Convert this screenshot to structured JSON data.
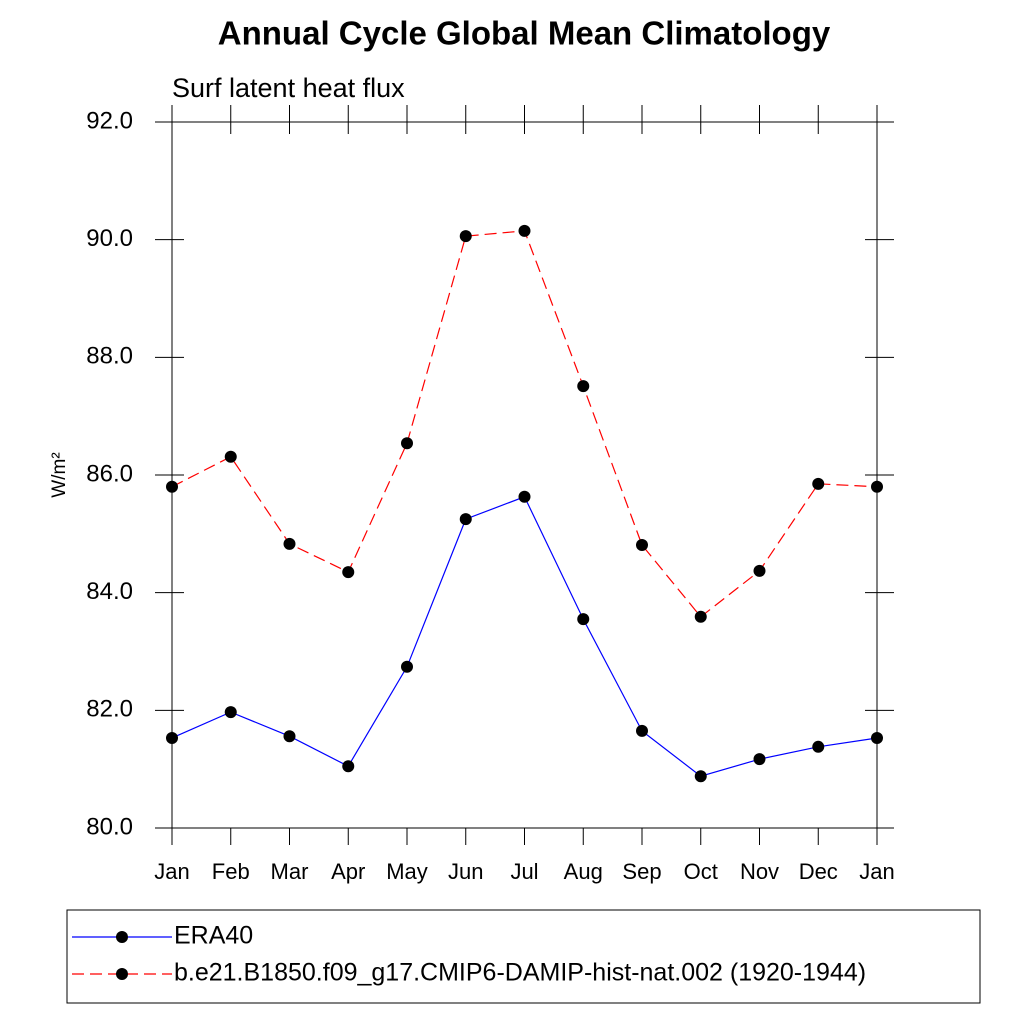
{
  "chart_data": {
    "type": "line",
    "title": "Annual Cycle Global Mean Climatology",
    "subtitle": "Surf latent heat flux",
    "y_label": "W/m²",
    "categories": [
      "Jan",
      "Feb",
      "Mar",
      "Apr",
      "May",
      "Jun",
      "Jul",
      "Aug",
      "Sep",
      "Oct",
      "Nov",
      "Dec",
      "Jan"
    ],
    "series": [
      {
        "name": "ERA40",
        "color": "#0000ff",
        "dash": false,
        "values": [
          81.53,
          81.97,
          81.56,
          81.05,
          82.74,
          85.25,
          85.63,
          83.55,
          81.65,
          80.88,
          81.17,
          81.38,
          81.53
        ]
      },
      {
        "name": "b.e21.B1850.f09_g17.CMIP6-DAMIP-hist-nat.002 (1920-1944)",
        "color": "#ff0000",
        "dash": true,
        "values": [
          85.8,
          86.31,
          84.83,
          84.35,
          86.54,
          90.06,
          90.15,
          87.51,
          84.81,
          83.59,
          84.37,
          85.85,
          85.8
        ]
      }
    ],
    "ylim": [
      80,
      92
    ],
    "yticks": [
      {
        "value": 80,
        "label": "80.0"
      },
      {
        "value": 82,
        "label": "82.0"
      },
      {
        "value": 84,
        "label": "84.0"
      },
      {
        "value": 86,
        "label": "86.0"
      },
      {
        "value": 88,
        "label": "88.0"
      },
      {
        "value": 90,
        "label": "90.0"
      },
      {
        "value": 92,
        "label": "92.0"
      }
    ]
  }
}
